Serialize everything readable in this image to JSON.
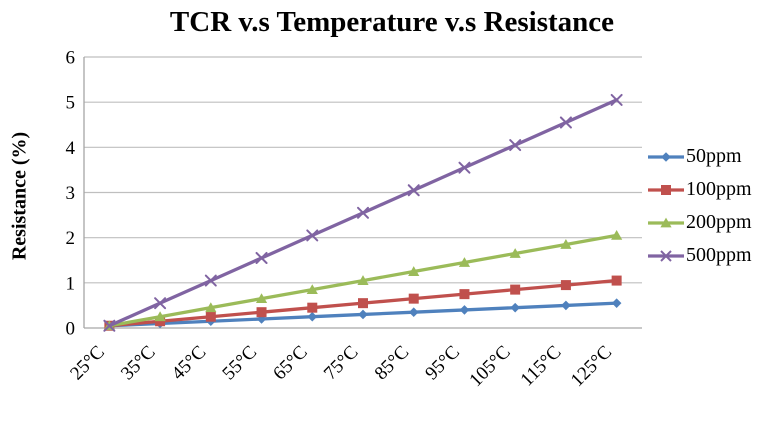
{
  "chart_data": {
    "type": "line",
    "title": "TCR v.s Temperature v.s Resistance",
    "xlabel": "",
    "ylabel": "Resistance (%)",
    "x": [
      25,
      35,
      45,
      55,
      65,
      75,
      85,
      95,
      105,
      115,
      125
    ],
    "x_tick_labels": [
      "25°C",
      "35°C",
      "45°C",
      "55°C",
      "65°C",
      "75°C",
      "85°C",
      "95°C",
      "105°C",
      "115°C",
      "125°C"
    ],
    "y_ticks": [
      0,
      1,
      2,
      3,
      4,
      5,
      6
    ],
    "ylim": [
      0,
      6
    ],
    "grid": true,
    "legend_position": "right",
    "series": [
      {
        "name": "50ppm",
        "color": "#4F81BD",
        "marker": "diamond",
        "values": [
          0.05,
          0.1,
          0.15,
          0.2,
          0.25,
          0.3,
          0.35,
          0.4,
          0.45,
          0.5,
          0.55
        ]
      },
      {
        "name": "100ppm",
        "color": "#C0504D",
        "marker": "square",
        "values": [
          0.05,
          0.15,
          0.25,
          0.35,
          0.45,
          0.55,
          0.65,
          0.75,
          0.85,
          0.95,
          1.05
        ]
      },
      {
        "name": "200ppm",
        "color": "#9BBB59",
        "marker": "triangle",
        "values": [
          0.05,
          0.25,
          0.45,
          0.65,
          0.85,
          1.05,
          1.25,
          1.45,
          1.65,
          1.85,
          2.05
        ]
      },
      {
        "name": "500ppm",
        "color": "#8064A2",
        "marker": "x",
        "values": [
          0.05,
          0.55,
          1.05,
          1.55,
          2.05,
          2.55,
          3.05,
          3.55,
          4.05,
          4.55,
          5.05
        ]
      }
    ],
    "colors": {
      "gridline": "#BFBFBF",
      "axis": "#A6A6A6",
      "text": "#000000",
      "background": "#FFFFFF"
    }
  }
}
